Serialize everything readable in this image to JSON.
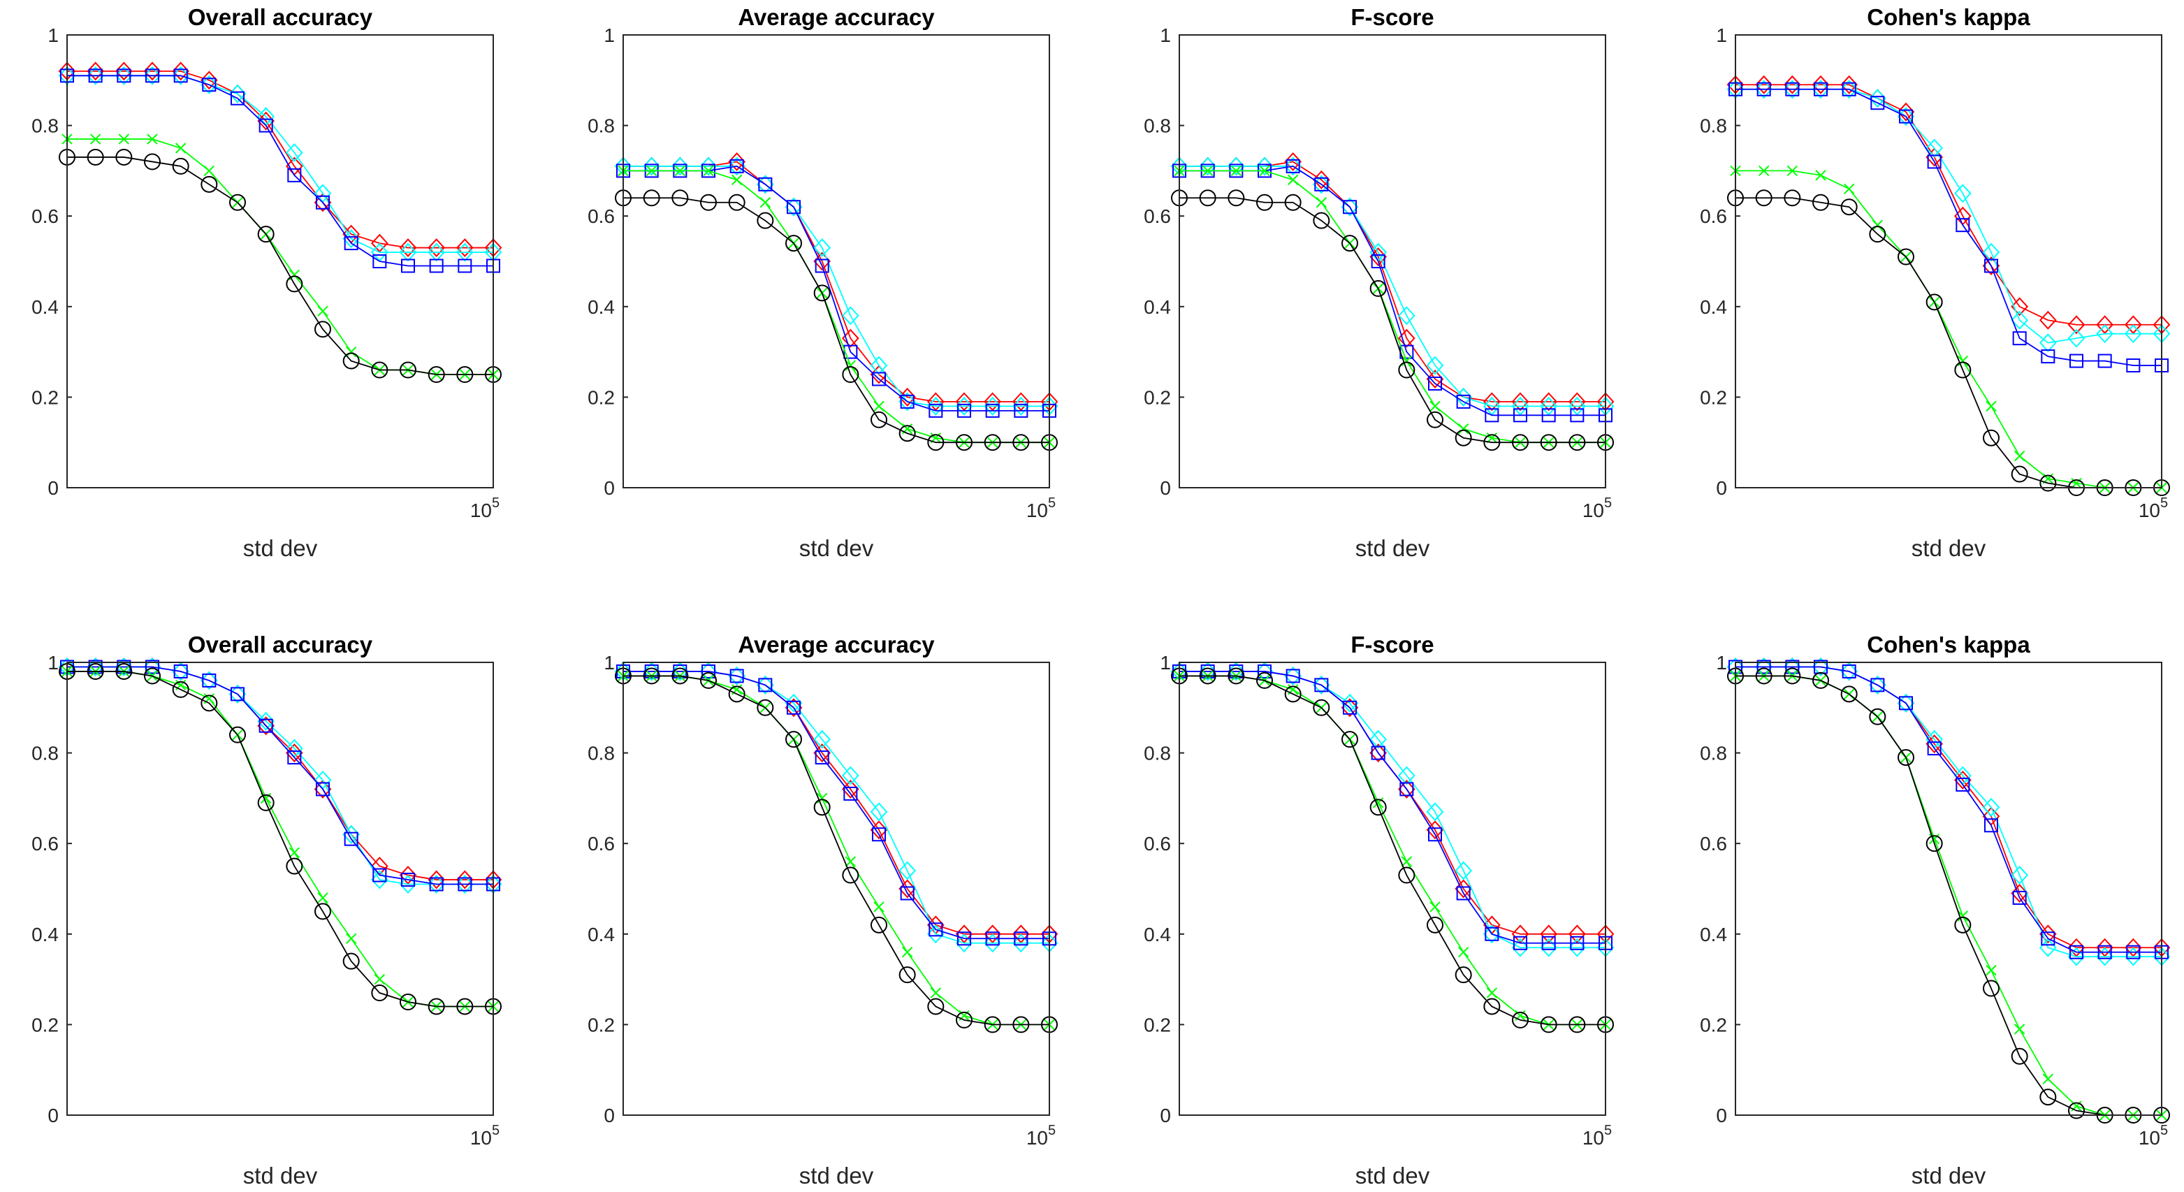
{
  "chart_data": [
    {
      "type": "line",
      "title": "Overall accuracy",
      "xlabel": "std dev",
      "xtick_label": "10^5",
      "ylim": [
        0,
        1
      ],
      "yticks": [
        "0",
        "0.2",
        "0.4",
        "0.6",
        "0.8",
        "1"
      ],
      "grid": false,
      "series": [
        {
          "color": "#ff0000",
          "marker": "diamond",
          "values": [
            0.92,
            0.92,
            0.92,
            0.92,
            0.92,
            0.9,
            0.87,
            0.81,
            0.71,
            0.63,
            0.56,
            0.54,
            0.53,
            0.53,
            0.53,
            0.53
          ]
        },
        {
          "color": "#00ffff",
          "marker": "diamond",
          "values": [
            0.91,
            0.91,
            0.91,
            0.91,
            0.91,
            0.89,
            0.87,
            0.82,
            0.74,
            0.65,
            0.55,
            0.52,
            0.52,
            0.52,
            0.52,
            0.52
          ]
        },
        {
          "color": "#0000ff",
          "marker": "square",
          "values": [
            0.91,
            0.91,
            0.91,
            0.91,
            0.91,
            0.89,
            0.86,
            0.8,
            0.69,
            0.63,
            0.54,
            0.5,
            0.49,
            0.49,
            0.49,
            0.49
          ]
        },
        {
          "color": "#00ff00",
          "marker": "x",
          "values": [
            0.77,
            0.77,
            0.77,
            0.77,
            0.75,
            0.7,
            0.63,
            0.56,
            0.47,
            0.39,
            0.3,
            0.26,
            0.26,
            0.25,
            0.25,
            0.25
          ]
        },
        {
          "color": "#000000",
          "marker": "circle",
          "values": [
            0.73,
            0.73,
            0.73,
            0.72,
            0.71,
            0.67,
            0.63,
            0.56,
            0.45,
            0.35,
            0.28,
            0.26,
            0.26,
            0.25,
            0.25,
            0.25
          ]
        }
      ]
    },
    {
      "type": "line",
      "title": "Average accuracy",
      "xlabel": "std dev",
      "xtick_label": "10^5",
      "ylim": [
        0,
        1
      ],
      "yticks": [
        "0",
        "0.2",
        "0.4",
        "0.6",
        "0.8",
        "1"
      ],
      "grid": false,
      "series": [
        {
          "color": "#ff0000",
          "marker": "diamond",
          "values": [
            0.71,
            0.71,
            0.71,
            0.71,
            0.72,
            0.67,
            0.62,
            0.5,
            0.33,
            0.25,
            0.2,
            0.19,
            0.19,
            0.19,
            0.19,
            0.19
          ]
        },
        {
          "color": "#00ffff",
          "marker": "diamond",
          "values": [
            0.71,
            0.71,
            0.71,
            0.71,
            0.71,
            0.67,
            0.62,
            0.53,
            0.38,
            0.27,
            0.19,
            0.18,
            0.18,
            0.18,
            0.18,
            0.18
          ]
        },
        {
          "color": "#0000ff",
          "marker": "square",
          "values": [
            0.7,
            0.7,
            0.7,
            0.7,
            0.71,
            0.67,
            0.62,
            0.49,
            0.3,
            0.24,
            0.19,
            0.17,
            0.17,
            0.17,
            0.17,
            0.17
          ]
        },
        {
          "color": "#00ff00",
          "marker": "x",
          "values": [
            0.7,
            0.7,
            0.7,
            0.7,
            0.68,
            0.63,
            0.54,
            0.43,
            0.27,
            0.18,
            0.13,
            0.11,
            0.1,
            0.1,
            0.1,
            0.1
          ]
        },
        {
          "color": "#000000",
          "marker": "circle",
          "values": [
            0.64,
            0.64,
            0.64,
            0.63,
            0.63,
            0.59,
            0.54,
            0.43,
            0.25,
            0.15,
            0.12,
            0.1,
            0.1,
            0.1,
            0.1,
            0.1
          ]
        }
      ]
    },
    {
      "type": "line",
      "title": "F-score",
      "xlabel": "std dev",
      "xtick_label": "10^5",
      "ylim": [
        0,
        1
      ],
      "yticks": [
        "0",
        "0.2",
        "0.4",
        "0.6",
        "0.8",
        "1"
      ],
      "grid": false,
      "series": [
        {
          "color": "#ff0000",
          "marker": "diamond",
          "values": [
            0.71,
            0.71,
            0.71,
            0.71,
            0.72,
            0.68,
            0.62,
            0.51,
            0.33,
            0.24,
            0.2,
            0.19,
            0.19,
            0.19,
            0.19,
            0.19
          ]
        },
        {
          "color": "#00ffff",
          "marker": "diamond",
          "values": [
            0.71,
            0.71,
            0.71,
            0.71,
            0.71,
            0.67,
            0.62,
            0.52,
            0.38,
            0.27,
            0.2,
            0.18,
            0.18,
            0.18,
            0.18,
            0.18
          ]
        },
        {
          "color": "#0000ff",
          "marker": "square",
          "values": [
            0.7,
            0.7,
            0.7,
            0.7,
            0.71,
            0.67,
            0.62,
            0.5,
            0.3,
            0.23,
            0.19,
            0.16,
            0.16,
            0.16,
            0.16,
            0.16
          ]
        },
        {
          "color": "#00ff00",
          "marker": "x",
          "values": [
            0.7,
            0.7,
            0.7,
            0.7,
            0.68,
            0.63,
            0.54,
            0.44,
            0.28,
            0.18,
            0.13,
            0.11,
            0.1,
            0.1,
            0.1,
            0.1
          ]
        },
        {
          "color": "#000000",
          "marker": "circle",
          "values": [
            0.64,
            0.64,
            0.64,
            0.63,
            0.63,
            0.59,
            0.54,
            0.44,
            0.26,
            0.15,
            0.11,
            0.1,
            0.1,
            0.1,
            0.1,
            0.1
          ]
        }
      ]
    },
    {
      "type": "line",
      "title": "Cohen's kappa",
      "xlabel": "std dev",
      "xtick_label": "10^5",
      "ylim": [
        0,
        1
      ],
      "yticks": [
        "0",
        "0.2",
        "0.4",
        "0.6",
        "0.8",
        "1"
      ],
      "grid": false,
      "series": [
        {
          "color": "#ff0000",
          "marker": "diamond",
          "values": [
            0.89,
            0.89,
            0.89,
            0.89,
            0.89,
            0.86,
            0.83,
            0.73,
            0.6,
            0.49,
            0.4,
            0.37,
            0.36,
            0.36,
            0.36,
            0.36
          ]
        },
        {
          "color": "#00ffff",
          "marker": "diamond",
          "values": [
            0.88,
            0.88,
            0.88,
            0.88,
            0.88,
            0.86,
            0.82,
            0.75,
            0.65,
            0.52,
            0.37,
            0.32,
            0.33,
            0.34,
            0.34,
            0.34
          ]
        },
        {
          "color": "#0000ff",
          "marker": "square",
          "values": [
            0.88,
            0.88,
            0.88,
            0.88,
            0.88,
            0.85,
            0.82,
            0.72,
            0.58,
            0.49,
            0.33,
            0.29,
            0.28,
            0.28,
            0.27,
            0.27
          ]
        },
        {
          "color": "#00ff00",
          "marker": "x",
          "values": [
            0.7,
            0.7,
            0.7,
            0.69,
            0.66,
            0.58,
            0.51,
            0.41,
            0.28,
            0.18,
            0.07,
            0.02,
            0.01,
            0.0,
            0.0,
            0.0
          ]
        },
        {
          "color": "#000000",
          "marker": "circle",
          "values": [
            0.64,
            0.64,
            0.64,
            0.63,
            0.62,
            0.56,
            0.51,
            0.41,
            0.26,
            0.11,
            0.03,
            0.01,
            0.0,
            0.0,
            0.0,
            0.0
          ]
        }
      ]
    },
    {
      "type": "line",
      "title": "Overall accuracy",
      "xlabel": "std dev",
      "xtick_label": "10^5",
      "ylim": [
        0,
        1
      ],
      "yticks": [
        "0",
        "0.2",
        "0.4",
        "0.6",
        "0.8",
        "1"
      ],
      "grid": false,
      "series": [
        {
          "color": "#ff0000",
          "marker": "diamond",
          "values": [
            0.99,
            0.99,
            0.99,
            0.99,
            0.98,
            0.96,
            0.93,
            0.86,
            0.8,
            0.72,
            0.62,
            0.55,
            0.53,
            0.52,
            0.52,
            0.52
          ]
        },
        {
          "color": "#00ffff",
          "marker": "diamond",
          "values": [
            0.99,
            0.99,
            0.99,
            0.99,
            0.98,
            0.96,
            0.93,
            0.87,
            0.81,
            0.74,
            0.62,
            0.52,
            0.51,
            0.51,
            0.51,
            0.51
          ]
        },
        {
          "color": "#0000ff",
          "marker": "square",
          "values": [
            0.99,
            0.99,
            0.99,
            0.99,
            0.98,
            0.96,
            0.93,
            0.86,
            0.79,
            0.72,
            0.61,
            0.53,
            0.52,
            0.51,
            0.51,
            0.51
          ]
        },
        {
          "color": "#00ff00",
          "marker": "x",
          "values": [
            0.98,
            0.98,
            0.98,
            0.97,
            0.95,
            0.92,
            0.84,
            0.7,
            0.58,
            0.48,
            0.39,
            0.3,
            0.25,
            0.24,
            0.24,
            0.24
          ]
        },
        {
          "color": "#000000",
          "marker": "circle",
          "values": [
            0.98,
            0.98,
            0.98,
            0.97,
            0.94,
            0.91,
            0.84,
            0.69,
            0.55,
            0.45,
            0.34,
            0.27,
            0.25,
            0.24,
            0.24,
            0.24
          ]
        }
      ]
    },
    {
      "type": "line",
      "title": "Average accuracy",
      "xlabel": "std dev",
      "xtick_label": "10^5",
      "ylim": [
        0,
        1
      ],
      "yticks": [
        "0",
        "0.2",
        "0.4",
        "0.6",
        "0.8",
        "1"
      ],
      "grid": false,
      "series": [
        {
          "color": "#ff0000",
          "marker": "diamond",
          "values": [
            0.98,
            0.98,
            0.98,
            0.98,
            0.97,
            0.95,
            0.9,
            0.8,
            0.72,
            0.63,
            0.5,
            0.42,
            0.4,
            0.4,
            0.4,
            0.4
          ]
        },
        {
          "color": "#00ffff",
          "marker": "diamond",
          "values": [
            0.98,
            0.98,
            0.98,
            0.98,
            0.97,
            0.95,
            0.91,
            0.83,
            0.75,
            0.67,
            0.54,
            0.4,
            0.38,
            0.38,
            0.38,
            0.38
          ]
        },
        {
          "color": "#0000ff",
          "marker": "square",
          "values": [
            0.98,
            0.98,
            0.98,
            0.98,
            0.97,
            0.95,
            0.9,
            0.79,
            0.71,
            0.62,
            0.49,
            0.41,
            0.39,
            0.39,
            0.39,
            0.39
          ]
        },
        {
          "color": "#00ff00",
          "marker": "x",
          "values": [
            0.97,
            0.97,
            0.97,
            0.96,
            0.94,
            0.9,
            0.83,
            0.7,
            0.56,
            0.46,
            0.36,
            0.27,
            0.22,
            0.2,
            0.2,
            0.2
          ]
        },
        {
          "color": "#000000",
          "marker": "circle",
          "values": [
            0.97,
            0.97,
            0.97,
            0.96,
            0.93,
            0.9,
            0.83,
            0.68,
            0.53,
            0.42,
            0.31,
            0.24,
            0.21,
            0.2,
            0.2,
            0.2
          ]
        }
      ]
    },
    {
      "type": "line",
      "title": "F-score",
      "xlabel": "std dev",
      "xtick_label": "10^5",
      "ylim": [
        0,
        1
      ],
      "yticks": [
        "0",
        "0.2",
        "0.4",
        "0.6",
        "0.8",
        "1"
      ],
      "grid": false,
      "series": [
        {
          "color": "#ff0000",
          "marker": "diamond",
          "values": [
            0.98,
            0.98,
            0.98,
            0.98,
            0.97,
            0.95,
            0.9,
            0.8,
            0.72,
            0.63,
            0.5,
            0.42,
            0.4,
            0.4,
            0.4,
            0.4
          ]
        },
        {
          "color": "#00ffff",
          "marker": "diamond",
          "values": [
            0.98,
            0.98,
            0.98,
            0.98,
            0.97,
            0.95,
            0.91,
            0.83,
            0.75,
            0.67,
            0.54,
            0.4,
            0.37,
            0.37,
            0.37,
            0.37
          ]
        },
        {
          "color": "#0000ff",
          "marker": "square",
          "values": [
            0.98,
            0.98,
            0.98,
            0.98,
            0.97,
            0.95,
            0.9,
            0.8,
            0.72,
            0.62,
            0.49,
            0.4,
            0.38,
            0.38,
            0.38,
            0.38
          ]
        },
        {
          "color": "#00ff00",
          "marker": "x",
          "values": [
            0.97,
            0.97,
            0.97,
            0.96,
            0.94,
            0.9,
            0.83,
            0.69,
            0.56,
            0.46,
            0.36,
            0.27,
            0.22,
            0.2,
            0.2,
            0.2
          ]
        },
        {
          "color": "#000000",
          "marker": "circle",
          "values": [
            0.97,
            0.97,
            0.97,
            0.96,
            0.93,
            0.9,
            0.83,
            0.68,
            0.53,
            0.42,
            0.31,
            0.24,
            0.21,
            0.2,
            0.2,
            0.2
          ]
        }
      ]
    },
    {
      "type": "line",
      "title": "Cohen's kappa",
      "xlabel": "std dev",
      "xtick_label": "10^5",
      "ylim": [
        0,
        1
      ],
      "yticks": [
        "0",
        "0.2",
        "0.4",
        "0.6",
        "0.8",
        "1"
      ],
      "grid": false,
      "series": [
        {
          "color": "#ff0000",
          "marker": "diamond",
          "values": [
            0.99,
            0.99,
            0.99,
            0.99,
            0.98,
            0.95,
            0.91,
            0.82,
            0.74,
            0.66,
            0.49,
            0.4,
            0.37,
            0.37,
            0.37,
            0.37
          ]
        },
        {
          "color": "#00ffff",
          "marker": "diamond",
          "values": [
            0.99,
            0.99,
            0.99,
            0.99,
            0.98,
            0.95,
            0.91,
            0.83,
            0.75,
            0.68,
            0.53,
            0.37,
            0.35,
            0.35,
            0.35,
            0.35
          ]
        },
        {
          "color": "#0000ff",
          "marker": "square",
          "values": [
            0.99,
            0.99,
            0.99,
            0.99,
            0.98,
            0.95,
            0.91,
            0.81,
            0.73,
            0.64,
            0.48,
            0.39,
            0.36,
            0.36,
            0.36,
            0.36
          ]
        },
        {
          "color": "#00ff00",
          "marker": "x",
          "values": [
            0.97,
            0.97,
            0.97,
            0.96,
            0.93,
            0.88,
            0.79,
            0.61,
            0.44,
            0.32,
            0.19,
            0.08,
            0.02,
            0.0,
            0.0,
            0.0
          ]
        },
        {
          "color": "#000000",
          "marker": "circle",
          "values": [
            0.97,
            0.97,
            0.97,
            0.96,
            0.93,
            0.88,
            0.79,
            0.6,
            0.42,
            0.28,
            0.13,
            0.04,
            0.01,
            0.0,
            0.0,
            0.0
          ]
        }
      ]
    }
  ]
}
